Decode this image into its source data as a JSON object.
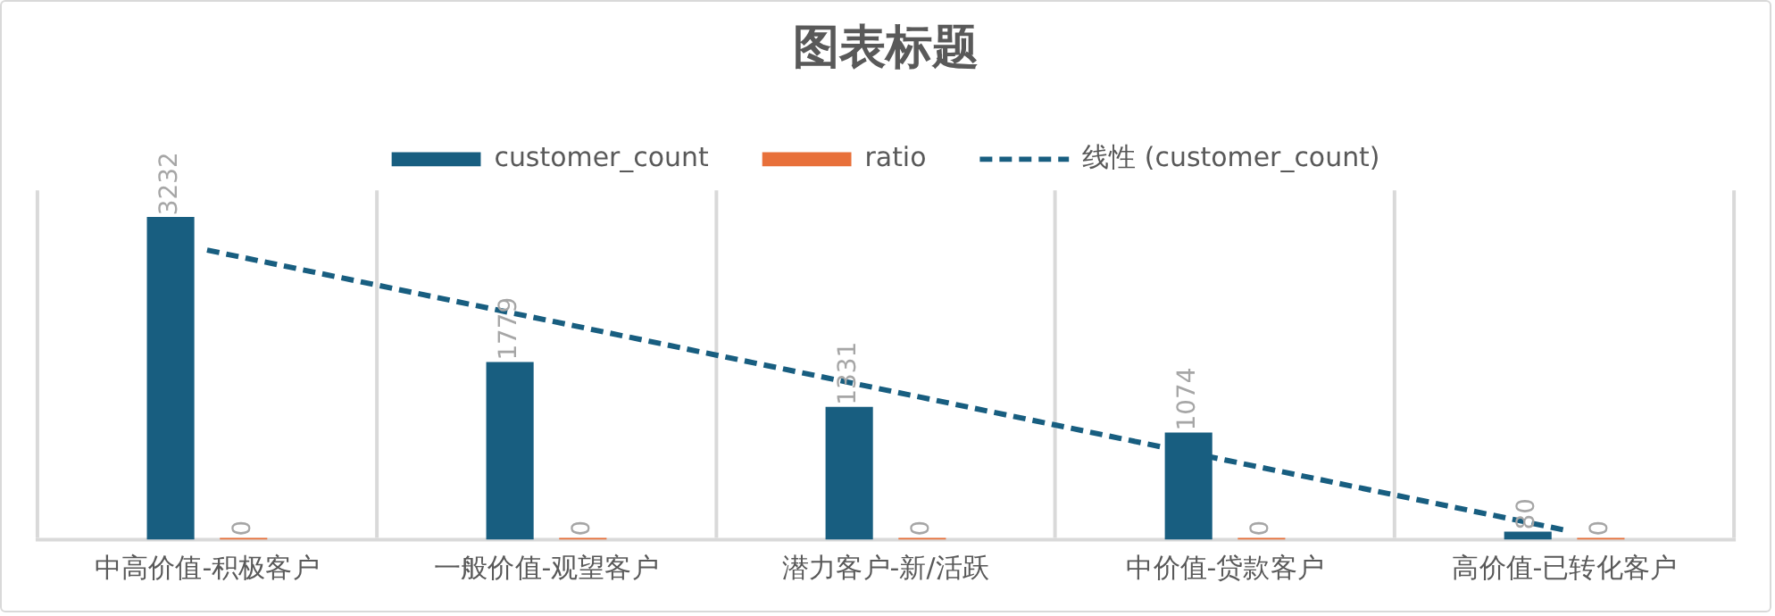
{
  "chart_data": {
    "type": "bar",
    "title": "图表标题",
    "categories": [
      "中高价值-积极客户",
      "一般价值-观望客户",
      "潜力客户-新/活跃",
      "中价值-贷款客户",
      "高价值-已转化客户"
    ],
    "series": [
      {
        "name": "customer_count",
        "color": "#185e80",
        "values": [
          3232,
          1779,
          1331,
          1074,
          80
        ],
        "value_labels": [
          "3232",
          "1779",
          "1331",
          "1074",
          "80"
        ]
      },
      {
        "name": "ratio",
        "color": "#e8703a",
        "values": [
          0,
          0,
          0,
          0,
          0
        ],
        "value_labels": [
          "0",
          "0",
          "0",
          "0",
          "0"
        ]
      },
      {
        "name": "线性 (customer_count)",
        "type": "line",
        "line_style": "dashed",
        "marker": "none",
        "color": "#185e80",
        "x": [
          "中高价值-积极客户",
          "一般价值-观望客户",
          "潜力客户-新/活跃",
          "中价值-贷款客户",
          "高价值-已转化客户"
        ],
        "values": [
          2901,
          2200,
          1499,
          798,
          97
        ]
      }
    ],
    "grid": "x",
    "legend": "top"
  }
}
